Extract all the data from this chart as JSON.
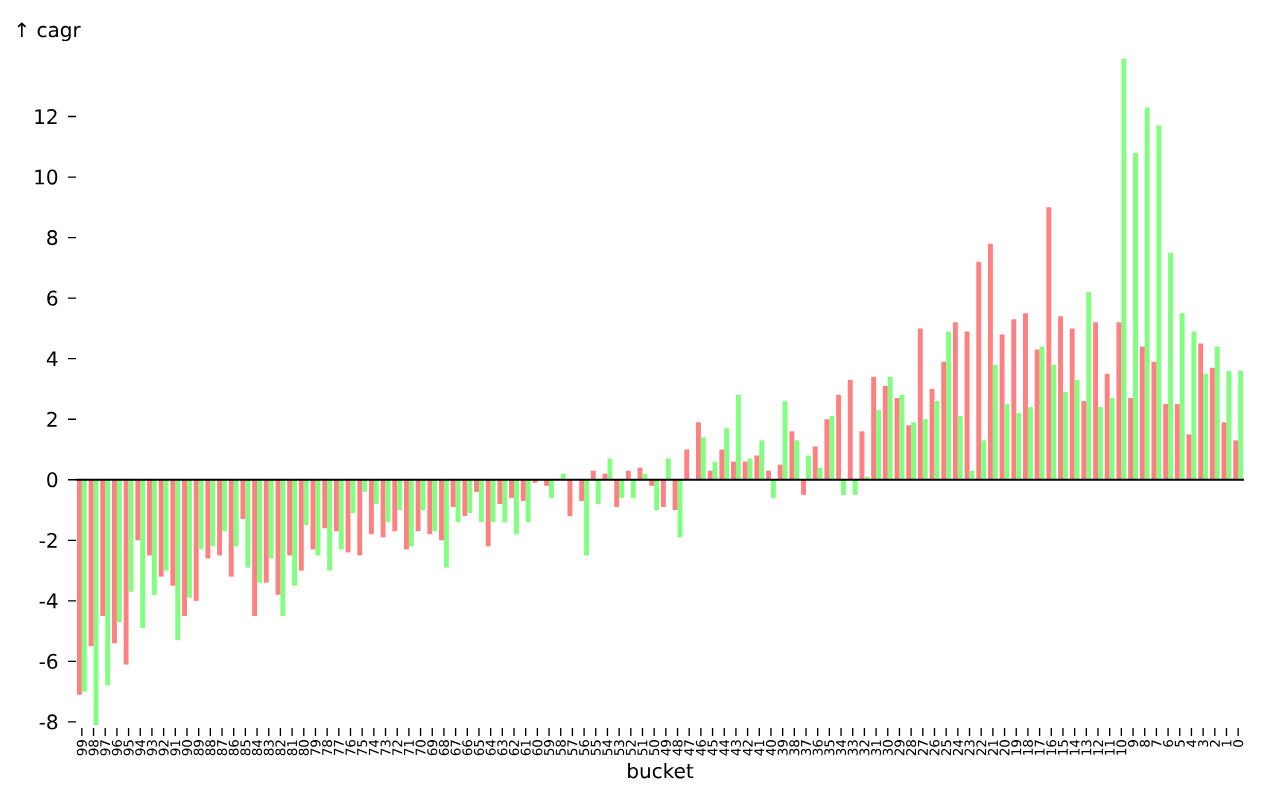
{
  "chart_data": {
    "type": "bar",
    "xlabel": "bucket",
    "ylabel": "↑ cagr",
    "categories": [
      "99",
      "98",
      "97",
      "96",
      "95",
      "94",
      "93",
      "92",
      "91",
      "90",
      "89",
      "88",
      "87",
      "86",
      "85",
      "84",
      "83",
      "82",
      "81",
      "80",
      "79",
      "78",
      "77",
      "76",
      "75",
      "74",
      "73",
      "72",
      "71",
      "70",
      "69",
      "68",
      "67",
      "66",
      "65",
      "64",
      "63",
      "62",
      "61",
      "60",
      "59",
      "58",
      "57",
      "56",
      "55",
      "54",
      "53",
      "52",
      "51",
      "50",
      "49",
      "48",
      "47",
      "46",
      "45",
      "44",
      "43",
      "42",
      "41",
      "40",
      "39",
      "38",
      "37",
      "36",
      "35",
      "34",
      "33",
      "32",
      "31",
      "30",
      "29",
      "28",
      "27",
      "26",
      "25",
      "24",
      "23",
      "22",
      "21",
      "20",
      "19",
      "18",
      "17",
      "16",
      "15",
      "14",
      "13",
      "12",
      "11",
      "10",
      "9",
      "8",
      "7",
      "6",
      "5",
      "4",
      "3",
      "2",
      "1",
      "0"
    ],
    "series": [
      {
        "color": "#ff8080",
        "values": [
          -7.1,
          -5.5,
          -4.5,
          -5.4,
          -6.1,
          -2.0,
          -2.5,
          -3.2,
          -3.5,
          -4.5,
          -4.0,
          -2.6,
          -2.5,
          -3.2,
          -1.3,
          -4.5,
          -3.4,
          -3.8,
          -2.5,
          -3.0,
          -2.3,
          -1.6,
          -1.7,
          -2.4,
          -2.5,
          -1.8,
          -1.9,
          -1.7,
          -2.3,
          -1.7,
          -1.8,
          -2.0,
          -0.9,
          -1.2,
          -0.4,
          -2.2,
          -0.8,
          -0.6,
          -0.7,
          -0.1,
          -0.2,
          0,
          -1.2,
          -0.7,
          0.3,
          0.2,
          -0.9,
          0.3,
          0.4,
          -0.2,
          -0.9,
          -1.0,
          1.0,
          1.9,
          0.3,
          1.0,
          0.6,
          0.6,
          0.8,
          0.3,
          0.5,
          1.6,
          -0.5,
          1.1,
          2.0,
          2.8,
          3.3,
          1.6,
          3.4,
          3.1,
          2.7,
          1.8,
          5.0,
          3.0,
          3.9,
          5.2,
          4.9,
          7.2,
          7.8,
          4.8,
          5.3,
          5.5,
          4.3,
          9.0,
          5.4,
          5.0,
          2.6,
          5.2,
          3.5,
          5.2,
          2.7,
          4.4,
          3.9,
          2.5,
          2.5,
          1.5,
          4.5,
          3.7,
          1.9,
          1.3
        ]
      },
      {
        "color": "#80ff80",
        "values": [
          -7.0,
          -8.1,
          -6.8,
          -4.7,
          -3.7,
          -4.9,
          -3.8,
          -3.0,
          -5.3,
          -3.9,
          -2.3,
          -2.2,
          -1.7,
          -2.2,
          -2.9,
          -3.4,
          -2.6,
          -4.5,
          -3.5,
          -1.5,
          -2.5,
          -3.0,
          -2.3,
          -1.1,
          -0.4,
          -0.8,
          -1.4,
          -1.0,
          -2.2,
          -1.0,
          -1.7,
          -2.9,
          -1.4,
          -1.1,
          -1.4,
          -1.4,
          -1.4,
          -1.8,
          -1.4,
          0,
          -0.6,
          0.2,
          0,
          -2.5,
          -0.8,
          0.7,
          -0.6,
          -0.6,
          0.2,
          -1.0,
          0.7,
          -1.9,
          0,
          1.4,
          0.6,
          1.7,
          2.8,
          0.7,
          1.3,
          -0.6,
          2.6,
          1.3,
          0.8,
          0.4,
          2.1,
          -0.5,
          -0.5,
          0.1,
          2.3,
          3.4,
          2.8,
          1.9,
          2.0,
          2.6,
          4.9,
          2.1,
          0.3,
          1.3,
          3.8,
          2.5,
          2.2,
          2.4,
          4.4,
          3.8,
          2.9,
          3.3,
          6.2,
          2.4,
          2.7,
          13.9,
          10.8,
          12.3,
          11.7,
          7.5,
          5.5,
          4.9,
          3.5,
          4.4,
          3.6,
          3.6
        ]
      }
    ],
    "ylim": [
      -8.2,
      14
    ],
    "yticks": [
      -8,
      -6,
      -4,
      -2,
      0,
      2,
      4,
      6,
      8,
      10,
      12
    ],
    "ref_lines": [
      {
        "axis": "y",
        "value": 0,
        "color": "#000000"
      }
    ]
  }
}
